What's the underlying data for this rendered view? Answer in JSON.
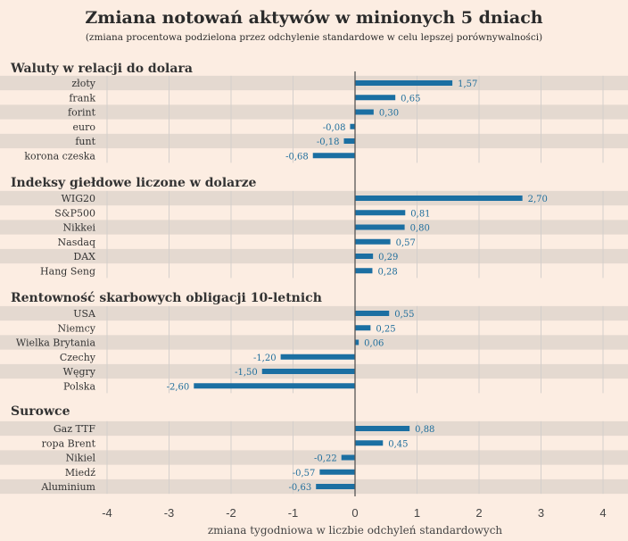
{
  "colors": {
    "background": "#fcede2",
    "stripe": "#e4d9d0",
    "bar": "#1b6fa2",
    "value_text": "#1f6e9c",
    "grid": "#d4cfcc",
    "zero_line": "#555555"
  },
  "chart_data": {
    "type": "bar",
    "orientation": "horizontal",
    "title": "Zmiana notowań aktywów w minionych 5 dniach",
    "subtitle": "(zmiana procentowa podzielona przez odchylenie standardowe w celu lepszej porównywalności)",
    "xlabel": "zmiana tygodniowa w liczbie odchyleń standardowych",
    "xlim": [
      -4,
      4
    ],
    "xticks": [
      "-4",
      "-3",
      "-2",
      "-1",
      "0",
      "1",
      "2",
      "3",
      "4"
    ],
    "grid": true,
    "groups": [
      {
        "name": "Waluty w relacji do dolara",
        "categories": [
          "złoty",
          "frank",
          "forint",
          "euro",
          "funt",
          "korona czeska"
        ],
        "values": [
          1.57,
          0.65,
          0.3,
          -0.08,
          -0.18,
          -0.68
        ],
        "labels": [
          "1,57",
          "0,65",
          "0,30",
          "-0,08",
          "-0,18",
          "-0,68"
        ]
      },
      {
        "name": "Indeksy giełdowe liczone w dolarze",
        "categories": [
          "WIG20",
          "S&P500",
          "Nikkei",
          "Nasdaq",
          "DAX",
          "Hang Seng"
        ],
        "values": [
          2.7,
          0.81,
          0.8,
          0.57,
          0.29,
          0.28
        ],
        "labels": [
          "2,70",
          "0,81",
          "0,80",
          "0,57",
          "0,29",
          "0,28"
        ]
      },
      {
        "name": "Rentowność skarbowych obligacji 10-letnich",
        "categories": [
          "USA",
          "Niemcy",
          "Wielka Brytania",
          "Czechy",
          "Węgry",
          "Polska"
        ],
        "values": [
          0.55,
          0.25,
          0.06,
          -1.2,
          -1.5,
          -2.6
        ],
        "labels": [
          "0,55",
          "0,25",
          "0,06",
          "-1,20",
          "-1,50",
          "-2,60"
        ]
      },
      {
        "name": "Surowce",
        "categories": [
          "Gaz TTF",
          "ropa Brent",
          "Nikiel",
          "Miedź",
          "Aluminium"
        ],
        "values": [
          0.88,
          0.45,
          -0.22,
          -0.57,
          -0.63
        ],
        "labels": [
          "0,88",
          "0,45",
          "-0,22",
          "-0,57",
          "-0,63"
        ]
      }
    ]
  }
}
